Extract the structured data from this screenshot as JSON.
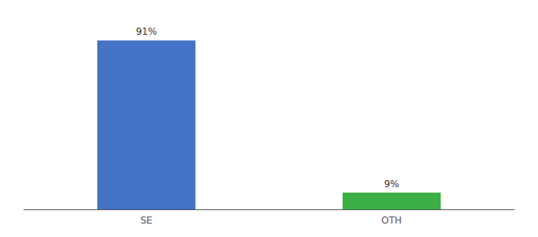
{
  "chart_data": {
    "type": "bar",
    "categories": [
      "SE",
      "OTH"
    ],
    "values": [
      91,
      9
    ],
    "value_labels": [
      "91%",
      "9%"
    ],
    "colors": [
      "#4472c4",
      "#3cb044"
    ],
    "ylim": [
      0,
      100
    ],
    "grid": false,
    "data_labels": true,
    "tick_labels": "x"
  }
}
